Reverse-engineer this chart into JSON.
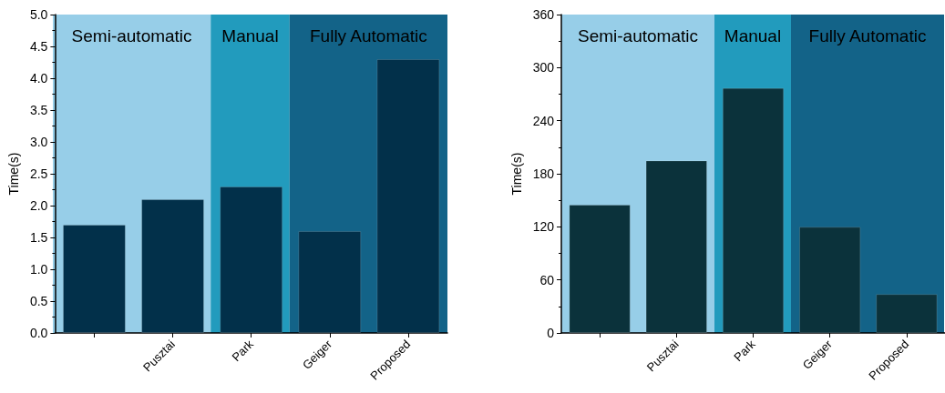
{
  "chart_data": [
    {
      "type": "bar",
      "ylabel": "Time(s)",
      "categories": [
        null,
        "Pusztai",
        "Park",
        "Geiger",
        "Proposed"
      ],
      "series": [
        {
          "color": "#02304a",
          "values": [
            1.7,
            2.1,
            2.3,
            1.6,
            4.3
          ]
        }
      ],
      "ylim": [
        0,
        5
      ],
      "yticks": [
        {
          "value": 0,
          "label": "0.0"
        },
        0.5,
        {
          "value": 1,
          "label": "1.0"
        },
        1.5,
        {
          "value": 2,
          "label": "2.0"
        },
        2.5,
        {
          "value": 3,
          "label": "3.0"
        },
        3.5,
        {
          "value": 4,
          "label": "4.0"
        },
        4.5,
        {
          "value": 5,
          "label": "5.0"
        }
      ],
      "grid": false,
      "annotations": [
        "Semi-automatic"
      ],
      "bands": [
        {
          "axis": "x",
          "from": "Park",
          "to": "Park",
          "label": "Manual",
          "color": "#229bbd"
        },
        {
          "axis": "x",
          "from": "Geiger",
          "to": "Proposed",
          "label": "Fully Automatic",
          "color": "#136388"
        }
      ]
    },
    {
      "type": "bar",
      "ylabel": "Time(s)",
      "categories": [
        null,
        "Pusztai",
        "Park",
        "Geiger",
        "Proposed"
      ],
      "series": [
        {
          "color": "#0b323b",
          "values": [
            145,
            195,
            277,
            120,
            44
          ]
        }
      ],
      "ylim": [
        0,
        360
      ],
      "yticks": [
        0,
        60,
        120,
        180,
        240,
        300,
        360
      ],
      "grid": false,
      "annotations": [
        "Semi-automatic"
      ],
      "bands": [
        {
          "axis": "x",
          "from": "Park",
          "to": "Park",
          "label": "Manual",
          "color": "#229bbd"
        },
        {
          "axis": "x",
          "from": "Geiger",
          "to": "Proposed",
          "label": "Fully Automatic",
          "color": "#136388"
        }
      ]
    }
  ]
}
